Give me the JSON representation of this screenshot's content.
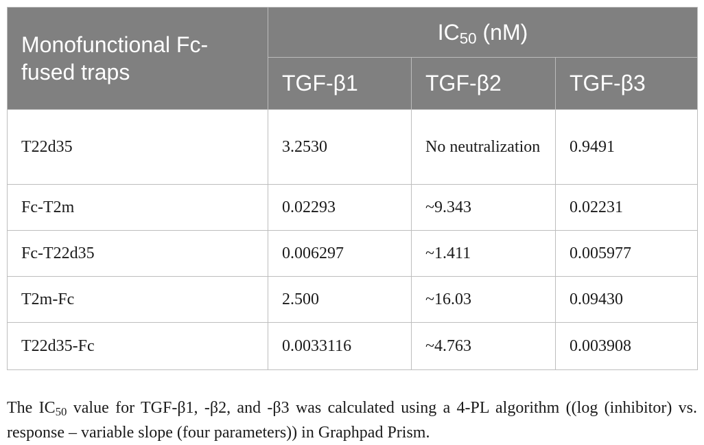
{
  "table": {
    "stub_header": "Monofunctional Fc-fused traps",
    "group_header": {
      "prefix": "IC",
      "subscript": "50",
      "suffix": " (nM)"
    },
    "columns": [
      "TGF-β1",
      "TGF-β2",
      "TGF-β3"
    ],
    "rows": [
      {
        "name": "T22d35",
        "values": [
          "3.2530",
          "No neutralization",
          "0.9491"
        ]
      },
      {
        "name": "Fc-T2m",
        "values": [
          "0.02293",
          "~9.343",
          "0.02231"
        ]
      },
      {
        "name": "Fc-T22d35",
        "values": [
          "0.006297",
          "~1.411",
          "0.005977"
        ]
      },
      {
        "name": "T2m-Fc",
        "values": [
          "2.500",
          "~16.03",
          "0.09430"
        ]
      },
      {
        "name": "T22d35-Fc",
        "values": [
          "0.0033116",
          "~4.763",
          "0.003908"
        ]
      }
    ]
  },
  "footnote": {
    "prefix": "The IC",
    "subscript": "50",
    "text": " value for TGF-β1, -β2, and -β3 was calculated using a 4-PL algorithm ((log (inhibitor) vs. response – variable slope (four parameters)) in Graphpad Prism."
  }
}
